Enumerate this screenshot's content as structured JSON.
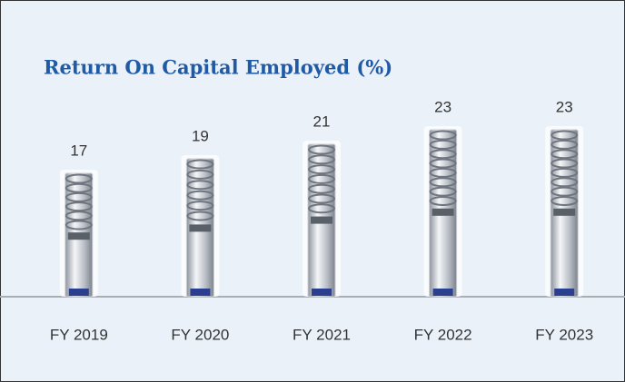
{
  "chart_data": {
    "type": "pictogram-bar",
    "title": "Return On Capital Employed (%)",
    "categories": [
      "FY 2019",
      "FY 2020",
      "FY 2021",
      "FY 2022",
      "FY 2023"
    ],
    "values": [
      17,
      19,
      21,
      23,
      23
    ],
    "color": "#c9ced6",
    "ylim": [
      0,
      25
    ]
  }
}
